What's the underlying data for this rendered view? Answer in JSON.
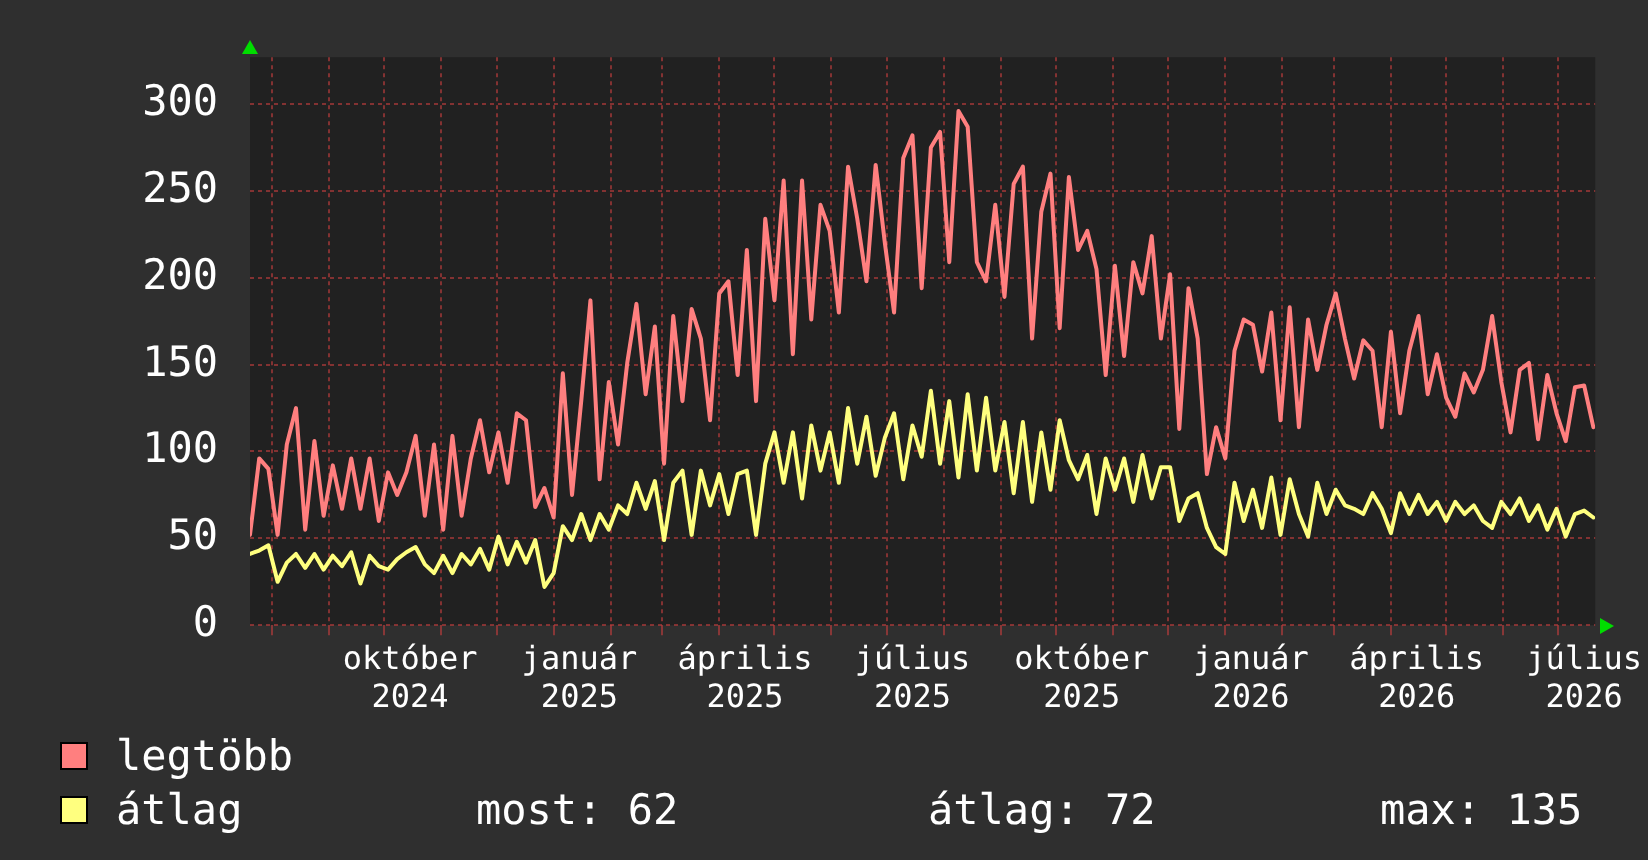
{
  "chart_data": {
    "type": "line",
    "x": [
      "2024-07-20",
      "2024-07-25",
      "2024-07-30",
      "2024-08-04",
      "2024-08-09",
      "2024-08-14",
      "2024-08-19",
      "2024-08-24",
      "2024-08-29",
      "2024-09-03",
      "2024-09-08",
      "2024-09-13",
      "2024-09-18",
      "2024-09-23",
      "2024-09-28",
      "2024-10-03",
      "2024-10-08",
      "2024-10-13",
      "2024-10-18",
      "2024-10-23",
      "2024-10-28",
      "2024-11-02",
      "2024-11-07",
      "2024-11-12",
      "2024-11-17",
      "2024-11-22",
      "2024-11-27",
      "2024-12-02",
      "2024-12-07",
      "2024-12-12",
      "2024-12-17",
      "2024-12-22",
      "2024-12-27",
      "2025-01-01",
      "2025-01-06",
      "2025-01-11",
      "2025-01-16",
      "2025-01-21",
      "2025-01-26",
      "2025-01-31",
      "2025-02-05",
      "2025-02-10",
      "2025-02-15",
      "2025-02-20",
      "2025-02-25",
      "2025-03-02",
      "2025-03-07",
      "2025-03-12",
      "2025-03-17",
      "2025-03-22",
      "2025-03-27",
      "2025-04-01",
      "2025-04-06",
      "2025-04-11",
      "2025-04-16",
      "2025-04-21",
      "2025-04-26",
      "2025-05-01",
      "2025-05-06",
      "2025-05-11",
      "2025-05-16",
      "2025-05-21",
      "2025-05-26",
      "2025-05-31",
      "2025-06-05",
      "2025-06-10",
      "2025-06-15",
      "2025-06-20",
      "2025-06-25",
      "2025-06-30",
      "2025-07-05",
      "2025-07-10",
      "2025-07-15",
      "2025-07-20",
      "2025-07-25",
      "2025-07-30",
      "2025-08-04",
      "2025-08-09",
      "2025-08-14",
      "2025-08-19",
      "2025-08-24",
      "2025-08-29",
      "2025-09-03",
      "2025-09-08",
      "2025-09-13",
      "2025-09-18",
      "2025-09-23",
      "2025-09-28",
      "2025-10-03",
      "2025-10-08",
      "2025-10-13",
      "2025-10-18",
      "2025-10-23",
      "2025-10-28",
      "2025-11-02",
      "2025-11-07",
      "2025-11-12",
      "2025-11-17",
      "2025-11-22",
      "2025-11-27",
      "2025-12-02",
      "2025-12-07",
      "2025-12-12",
      "2025-12-17",
      "2025-12-22",
      "2025-12-27",
      "2026-01-01",
      "2026-01-06",
      "2026-01-11",
      "2026-01-16",
      "2026-01-21",
      "2026-01-26",
      "2026-01-31",
      "2026-02-05",
      "2026-02-10",
      "2026-02-15",
      "2026-02-20",
      "2026-02-25",
      "2026-03-02",
      "2026-03-07",
      "2026-03-12",
      "2026-03-17",
      "2026-03-22",
      "2026-03-27",
      "2026-04-01",
      "2026-04-06",
      "2026-04-11",
      "2026-04-16",
      "2026-04-21",
      "2026-04-26",
      "2026-05-01",
      "2026-05-06",
      "2026-05-11",
      "2026-05-16",
      "2026-05-21",
      "2026-05-26",
      "2026-05-31",
      "2026-06-05",
      "2026-06-10",
      "2026-06-15",
      "2026-06-20",
      "2026-06-25",
      "2026-06-30",
      "2026-07-05",
      "2026-07-10",
      "2026-07-15",
      "2026-07-20"
    ],
    "series": [
      {
        "name": "legtöbb",
        "color": "#ff7f7f",
        "values": [
          52,
          96,
          90,
          52,
          104,
          125,
          55,
          106,
          63,
          92,
          67,
          96,
          67,
          96,
          60,
          88,
          75,
          88,
          109,
          63,
          104,
          55,
          109,
          63,
          96,
          118,
          88,
          111,
          82,
          122,
          118,
          68,
          79,
          62,
          145,
          75,
          129,
          187,
          84,
          140,
          104,
          151,
          185,
          133,
          172,
          93,
          178,
          129,
          182,
          165,
          118,
          191,
          198,
          144,
          216,
          129,
          234,
          187,
          256,
          156,
          256,
          176,
          242,
          227,
          180,
          264,
          234,
          198,
          265,
          220,
          180,
          269,
          282,
          194,
          275,
          284,
          209,
          296,
          287,
          209,
          198,
          242,
          189,
          254,
          264,
          165,
          238,
          260,
          171,
          258,
          216,
          227,
          205,
          144,
          207,
          155,
          209,
          191,
          224,
          165,
          202,
          113,
          194,
          165,
          87,
          114,
          96,
          158,
          176,
          173,
          146,
          180,
          118,
          183,
          114,
          176,
          147,
          173,
          191,
          165,
          142,
          164,
          158,
          114,
          169,
          122,
          158,
          178,
          133,
          156,
          131,
          120,
          145,
          134,
          147,
          178,
          140,
          111,
          147,
          151,
          107,
          144,
          122,
          106,
          137,
          138,
          114
        ]
      },
      {
        "name": "átlag",
        "color": "#ffff7f",
        "values": [
          41,
          43,
          46,
          25,
          36,
          41,
          33,
          41,
          32,
          40,
          34,
          42,
          24,
          40,
          34,
          32,
          38,
          42,
          45,
          35,
          30,
          40,
          30,
          41,
          35,
          44,
          32,
          51,
          35,
          48,
          36,
          49,
          22,
          30,
          57,
          49,
          64,
          49,
          64,
          55,
          69,
          64,
          82,
          67,
          83,
          49,
          82,
          89,
          52,
          89,
          69,
          87,
          64,
          87,
          89,
          52,
          93,
          111,
          82,
          111,
          73,
          115,
          89,
          111,
          82,
          125,
          93,
          120,
          86,
          108,
          122,
          84,
          115,
          97,
          135,
          93,
          129,
          85,
          133,
          89,
          131,
          89,
          117,
          76,
          117,
          71,
          111,
          78,
          118,
          95,
          84,
          98,
          64,
          96,
          78,
          96,
          71,
          98,
          73,
          91,
          91,
          60,
          73,
          76,
          56,
          45,
          41,
          82,
          60,
          78,
          56,
          85,
          52,
          84,
          64,
          51,
          82,
          64,
          78,
          69,
          67,
          64,
          76,
          67,
          53,
          76,
          64,
          75,
          64,
          71,
          60,
          71,
          64,
          69,
          60,
          56,
          71,
          64,
          73,
          60,
          69,
          55,
          67,
          51,
          64,
          66,
          62
        ]
      }
    ],
    "xlim": [
      "2024-07-20",
      "2026-07-21"
    ],
    "xticks": [
      {
        "value": "2024-08-01",
        "label": null
      },
      {
        "value": "2024-09-01",
        "label": null
      },
      {
        "value": "2024-10-01",
        "label": null
      },
      {
        "value": "2024-10-15",
        "label": "október 2024"
      },
      {
        "value": "2024-11-01",
        "label": null
      },
      {
        "value": "2024-12-01",
        "label": null
      },
      {
        "value": "2025-01-01",
        "label": null
      },
      {
        "value": "2025-01-15",
        "label": "január 2025"
      },
      {
        "value": "2025-02-01",
        "label": null
      },
      {
        "value": "2025-03-01",
        "label": null
      },
      {
        "value": "2025-04-01",
        "label": null
      },
      {
        "value": "2025-04-15",
        "label": "április 2025"
      },
      {
        "value": "2025-05-01",
        "label": null
      },
      {
        "value": "2025-06-01",
        "label": null
      },
      {
        "value": "2025-07-01",
        "label": null
      },
      {
        "value": "2025-07-15",
        "label": "július 2025"
      },
      {
        "value": "2025-08-01",
        "label": null
      },
      {
        "value": "2025-09-01",
        "label": null
      },
      {
        "value": "2025-10-01",
        "label": null
      },
      {
        "value": "2025-10-15",
        "label": "október 2025"
      },
      {
        "value": "2025-11-01",
        "label": null
      },
      {
        "value": "2025-12-01",
        "label": null
      },
      {
        "value": "2026-01-01",
        "label": null
      },
      {
        "value": "2026-01-15",
        "label": "január 2026"
      },
      {
        "value": "2026-02-01",
        "label": null
      },
      {
        "value": "2026-03-01",
        "label": null
      },
      {
        "value": "2026-04-01",
        "label": null
      },
      {
        "value": "2026-04-15",
        "label": "április 2026"
      },
      {
        "value": "2026-05-01",
        "label": null
      },
      {
        "value": "2026-06-01",
        "label": null
      },
      {
        "value": "2026-07-01",
        "label": null
      },
      {
        "value": "2026-07-15",
        "label": "július 2026"
      }
    ],
    "ylim": [
      0,
      327
    ],
    "yticks": [
      0,
      50,
      100,
      150,
      200,
      250,
      300
    ],
    "grid": true,
    "legend": "bottom",
    "marker": "none",
    "annotations": [
      "most: 62",
      "átlag: 72",
      "max: 135"
    ]
  }
}
